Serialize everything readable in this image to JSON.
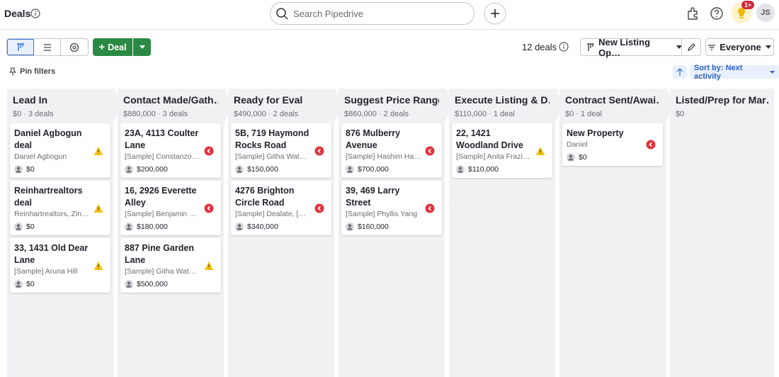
{
  "header": {
    "title": "Deals",
    "search_placeholder": "Search Pipedrive",
    "badge": "1+",
    "avatar": "JS"
  },
  "toolbar": {
    "add_deal": "Deal",
    "deal_count": "12 deals",
    "pipeline": "New Listing Op…",
    "filter": "Everyone",
    "pin_filters": "Pin filters",
    "sort": "Sort by: Next activity"
  },
  "columns": [
    {
      "name": "Lead In",
      "summary": "$0 · 3 deals",
      "deals": [
        {
          "title": "Daniel Agbogun deal",
          "person": "Daniel Agbogun",
          "value": "$0",
          "status": "warning"
        },
        {
          "title": "Reinhartrealtors deal",
          "person": "Reinhartrealtors, Zin…",
          "value": "$0",
          "status": "warning"
        },
        {
          "title": "33, 1431 Old Dear Lane",
          "person": "[Sample] Aruna Hill",
          "value": "$0",
          "status": "warning"
        }
      ]
    },
    {
      "name": "Contact Made/Gath…",
      "summary": "$880,000 · 3 deals",
      "deals": [
        {
          "title": "23A, 4113 Coulter Lane",
          "person": "[Sample] Constanzo…",
          "value": "$200,000",
          "status": "overdue"
        },
        {
          "title": "16, 2926 Everette Alley",
          "person": "[Sample] Benjamin …",
          "value": "$180,000",
          "status": "overdue"
        },
        {
          "title": "887 Pine Garden Lane",
          "person": "[Sample] Githa Wat…",
          "value": "$500,000",
          "status": "warning"
        }
      ]
    },
    {
      "name": "Ready for Eval",
      "summary": "$490,000 · 2 deals",
      "deals": [
        {
          "title": "5B, 719 Haymond Rocks Road",
          "person": "[Sample] Githa Wat…",
          "value": "$150,000",
          "status": "overdue"
        },
        {
          "title": "4276 Brighton Circle Road",
          "person": "[Sample] Dealate, […",
          "value": "$340,000",
          "status": "overdue"
        }
      ]
    },
    {
      "name": "Suggest Price Range",
      "summary": "$860,000 · 2 deals",
      "deals": [
        {
          "title": "876 Mulberry Avenue",
          "person": "[Sample] Hashim Ha…",
          "value": "$700,000",
          "status": "overdue"
        },
        {
          "title": "39, 469 Larry Street",
          "person": "[Sample] Phyllis Yang",
          "value": "$160,000",
          "status": "overdue"
        }
      ]
    },
    {
      "name": "Execute Listing & D…",
      "summary": "$110,000 · 1 deal",
      "deals": [
        {
          "title": "22, 1421 Woodland Drive",
          "person": "[Sample] Anita Frazi…",
          "value": "$110,000",
          "status": "warning"
        }
      ]
    },
    {
      "name": "Contract Sent/Awai…",
      "summary": "$0 · 1 deal",
      "deals": [
        {
          "title": "New Property",
          "person": "Daniel",
          "value": "$0",
          "status": "overdue"
        }
      ]
    },
    {
      "name": "Listed/Prep for Mar…",
      "summary": "$0",
      "deals": []
    }
  ]
}
